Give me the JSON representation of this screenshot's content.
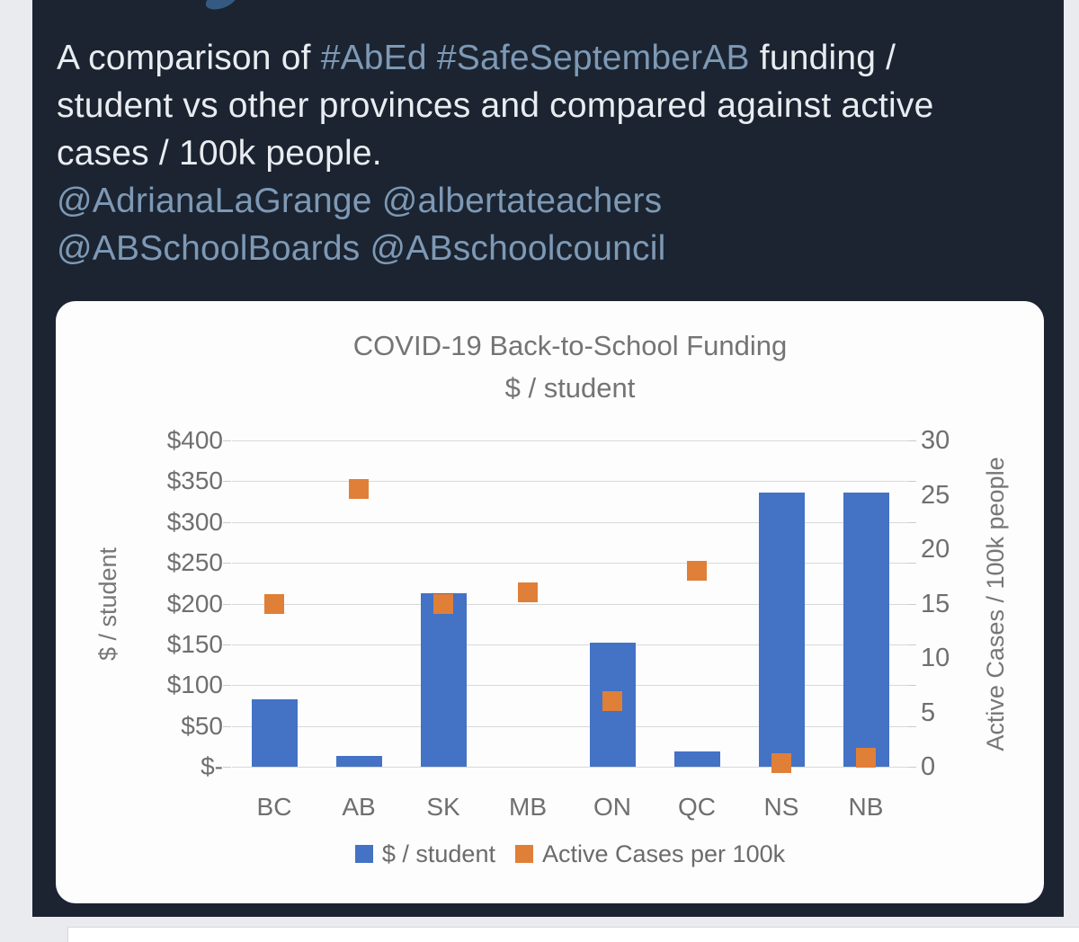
{
  "page": {
    "background_color": "#e9ebef",
    "post_background_color": "#1b2430"
  },
  "tweet": {
    "text_color": "#e9edf1",
    "link_color": "#7d99b6",
    "lines": [
      {
        "segments": [
          {
            "t": "A comparison of ",
            "link": false
          },
          {
            "t": "#AbEd",
            "link": true
          },
          {
            "t": " ",
            "link": false
          },
          {
            "t": "#SafeSeptemberAB",
            "link": true
          },
          {
            "t": " funding /",
            "link": false
          }
        ]
      },
      {
        "segments": [
          {
            "t": "student vs other provinces and compared against active",
            "link": false
          }
        ]
      },
      {
        "segments": [
          {
            "t": "cases / 100k people.",
            "link": false
          }
        ]
      },
      {
        "segments": [
          {
            "t": "@AdrianaLaGrange",
            "link": true
          },
          {
            "t": " ",
            "link": false
          },
          {
            "t": "@albertateachers",
            "link": true
          }
        ]
      },
      {
        "segments": [
          {
            "t": "@ABSchoolBoards",
            "link": true
          },
          {
            "t": " ",
            "link": false
          },
          {
            "t": "@ABschoolcouncil",
            "link": true
          }
        ]
      }
    ]
  },
  "chart_data": {
    "type": "bar",
    "subtype": "combo bar + scatter squares, dual axis",
    "title": "COVID-19 Back-to-School Funding",
    "subtitle": "$ / student",
    "categories": [
      "BC",
      "AB",
      "SK",
      "MB",
      "ON",
      "QC",
      "NS",
      "NB"
    ],
    "series": [
      {
        "name": "$ / student",
        "type": "bar",
        "axis": "left",
        "color": "#4472c4",
        "values": [
          83,
          13,
          213,
          0,
          152,
          19,
          336,
          336
        ]
      },
      {
        "name": "Active Cases per 100k",
        "type": "scatter-square",
        "axis": "right",
        "color": "#e07f38",
        "values": [
          15,
          25.5,
          15,
          16,
          6,
          18,
          0.3,
          0.8
        ]
      }
    ],
    "left_axis": {
      "label": "$ / student",
      "min": 0,
      "max": 400,
      "ticks": [
        "$400",
        "$350",
        "$300",
        "$250",
        "$200",
        "$150",
        "$100",
        "$50",
        "$-"
      ]
    },
    "right_axis": {
      "label": "Active Cases / 100k people",
      "min": 0,
      "max": 30,
      "ticks": [
        "30",
        "25",
        "20",
        "15",
        "10",
        "5",
        "0"
      ]
    },
    "legend": [
      {
        "label": "$ / student",
        "color": "#4472c4"
      },
      {
        "label": "Active Cases per 100k",
        "color": "#e07f38"
      }
    ],
    "grid": true,
    "gridline_color": "#d9d9d9",
    "text_color": "#747474",
    "background_color": "#fdfdfd",
    "legend_position": "bottom"
  }
}
